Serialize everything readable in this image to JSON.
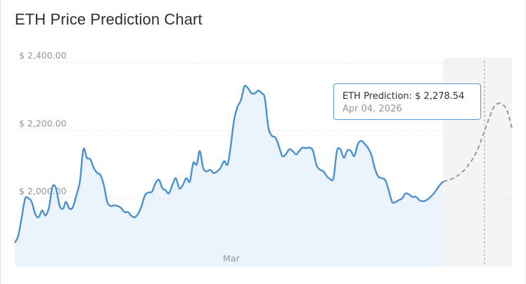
{
  "page": {
    "title": "ETH Price Prediction Chart"
  },
  "tooltip": {
    "value_label": "ETH Prediction: $ 2,278.54",
    "date_label": "Apr 04, 2026"
  },
  "colors": {
    "actual_line": "#4a90d0",
    "actual_fill": "#ebf4fd",
    "prediction_line": "#999999",
    "prediction_band": "#f4f4f4",
    "grid": "#e3e6ea",
    "tooltip_border": "#5b9bd5"
  },
  "chart_data": {
    "type": "line",
    "title": "ETH Price Prediction Chart",
    "xlabel": "",
    "ylabel": "",
    "ylim": [
      1800,
      2440
    ],
    "grid": true,
    "legend": "none",
    "y_ticks": [
      {
        "value": 2000,
        "label": "$ 2,000.00"
      },
      {
        "value": 2200,
        "label": "$ 2,200.00"
      },
      {
        "value": 2400,
        "label": "$ 2,400.00"
      }
    ],
    "x_tick_labels": [
      "Mar"
    ],
    "series": [
      {
        "type": "area",
        "x": [
          0.0,
          0.7,
          1.4,
          2.1,
          2.8,
          3.4,
          4.1,
          4.8,
          5.5,
          6.2,
          6.9,
          7.6,
          8.3,
          9.0,
          9.7,
          10.3,
          11.0,
          11.7,
          12.4,
          13.1,
          13.8,
          14.5,
          15.2,
          15.9,
          16.6,
          17.2,
          17.9,
          18.6,
          19.3,
          20.0,
          20.7,
          21.4,
          22.1,
          22.8,
          23.4,
          24.1,
          24.8,
          25.5,
          26.2,
          26.9,
          27.6,
          28.3,
          29.0,
          29.7,
          30.3,
          31.0,
          31.7,
          32.4,
          33.1,
          33.8,
          34.5,
          35.2,
          35.9,
          36.6,
          37.2,
          37.9,
          38.6,
          39.3,
          40.0,
          40.7,
          41.4,
          42.1,
          42.8,
          43.4,
          44.1,
          44.8,
          45.5,
          46.2,
          46.9,
          47.6,
          48.3,
          49.0,
          49.7,
          50.3,
          51.0,
          51.7,
          52.4,
          53.1,
          53.8,
          54.5,
          55.2,
          55.9,
          56.6,
          57.2,
          57.9,
          58.6,
          59.3,
          60.0,
          60.7,
          61.4,
          62.1,
          62.8,
          63.4,
          64.1,
          64.8,
          65.5,
          66.2,
          66.9,
          67.6,
          68.3,
          69.0,
          69.7,
          70.3,
          71.0,
          71.7,
          72.4,
          73.1,
          73.8,
          74.5,
          75.2,
          75.9,
          76.6,
          77.2,
          77.9,
          78.6,
          79.3,
          80.0,
          80.7,
          81.4,
          82.1,
          82.8,
          83.4,
          84.1,
          84.8,
          85.5,
          86.2
        ],
        "y": [
          1870,
          1890,
          1945,
          2000,
          2000,
          1990,
          1955,
          1945,
          1965,
          1950,
          1975,
          2035,
          2030,
          1980,
          1970,
          1990,
          1970,
          1975,
          2010,
          2050,
          2145,
          2120,
          2115,
          2090,
          2075,
          2070,
          2040,
          1990,
          1978,
          1980,
          1978,
          1972,
          1960,
          1960,
          1950,
          1945,
          1955,
          1978,
          2010,
          2018,
          2020,
          2045,
          2055,
          2030,
          2025,
          2015,
          2040,
          2060,
          2030,
          2040,
          2060,
          2050,
          2105,
          2100,
          2140,
          2090,
          2080,
          2085,
          2075,
          2080,
          2090,
          2110,
          2100,
          2150,
          2230,
          2270,
          2290,
          2330,
          2325,
          2310,
          2310,
          2318,
          2310,
          2295,
          2210,
          2185,
          2180,
          2155,
          2125,
          2130,
          2145,
          2140,
          2130,
          2140,
          2150,
          2148,
          2150,
          2140,
          2098,
          2085,
          2080,
          2065,
          2058,
          2060,
          2140,
          2145,
          2120,
          2142,
          2140,
          2125,
          2160,
          2170,
          2162,
          2150,
          2130,
          2090,
          2065,
          2060,
          2055,
          2025,
          1990,
          1990,
          1995,
          2000,
          2015,
          2012,
          2005,
          2005,
          1995,
          1992,
          1995,
          2002,
          2012,
          2025,
          2040,
          2050
        ]
      },
      {
        "type": "line",
        "dashed": true,
        "name": "ETH Prediction",
        "x": [
          86.2,
          88.5,
          90.8,
          92.8,
          94.5,
          95.5,
          96.4,
          97.2,
          98.0,
          99.0,
          100.0
        ],
        "y": [
          2050,
          2062,
          2090,
          2135,
          2200,
          2240,
          2270,
          2280,
          2278,
          2260,
          2208
        ]
      }
    ],
    "annotations": [
      {
        "type": "vertical-crosshair",
        "x": 94.5
      },
      {
        "type": "tooltip",
        "text": "ETH Prediction: $ 2,278.54",
        "date": "Apr 04, 2026"
      }
    ]
  }
}
